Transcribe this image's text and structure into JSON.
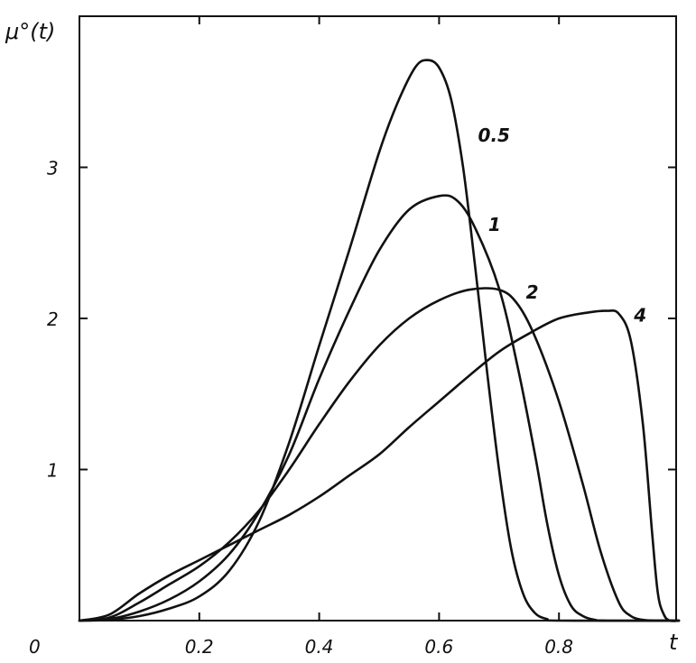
{
  "chart_data": {
    "type": "line",
    "ylabel": "μ°(t)",
    "xlabel": "t",
    "origin_label": "0",
    "xlim": [
      0,
      1.0
    ],
    "ylim": [
      0,
      4.0
    ],
    "x_ticks": [
      {
        "value": 0.2,
        "label": "0.2"
      },
      {
        "value": 0.4,
        "label": "0.4"
      },
      {
        "value": 0.6,
        "label": "0.6"
      },
      {
        "value": 0.8,
        "label": "0.8"
      }
    ],
    "y_ticks": [
      {
        "value": 1,
        "label": "1"
      },
      {
        "value": 2,
        "label": "2"
      },
      {
        "value": 3,
        "label": "3"
      }
    ],
    "grid": false,
    "legend": "none",
    "series": [
      {
        "name": "0.5",
        "label_pos": [
          0.665,
          3.17
        ],
        "points": [
          [
            0,
            0
          ],
          [
            0.05,
            0.005
          ],
          [
            0.1,
            0.03
          ],
          [
            0.15,
            0.08
          ],
          [
            0.2,
            0.16
          ],
          [
            0.25,
            0.33
          ],
          [
            0.3,
            0.66
          ],
          [
            0.35,
            1.18
          ],
          [
            0.4,
            1.82
          ],
          [
            0.45,
            2.45
          ],
          [
            0.5,
            3.1
          ],
          [
            0.53,
            3.42
          ],
          [
            0.56,
            3.66
          ],
          [
            0.58,
            3.71
          ],
          [
            0.6,
            3.66
          ],
          [
            0.62,
            3.45
          ],
          [
            0.64,
            3.0
          ],
          [
            0.66,
            2.35
          ],
          [
            0.68,
            1.65
          ],
          [
            0.7,
            1.0
          ],
          [
            0.72,
            0.48
          ],
          [
            0.74,
            0.18
          ],
          [
            0.76,
            0.05
          ],
          [
            0.78,
            0.01
          ],
          [
            0.8,
            0
          ],
          [
            1.0,
            0
          ]
        ]
      },
      {
        "name": "1",
        "label_pos": [
          0.682,
          2.58
        ],
        "points": [
          [
            0,
            0
          ],
          [
            0.05,
            0.01
          ],
          [
            0.1,
            0.06
          ],
          [
            0.15,
            0.14
          ],
          [
            0.2,
            0.26
          ],
          [
            0.25,
            0.44
          ],
          [
            0.3,
            0.72
          ],
          [
            0.35,
            1.1
          ],
          [
            0.4,
            1.6
          ],
          [
            0.45,
            2.05
          ],
          [
            0.5,
            2.45
          ],
          [
            0.55,
            2.72
          ],
          [
            0.6,
            2.81
          ],
          [
            0.63,
            2.78
          ],
          [
            0.66,
            2.6
          ],
          [
            0.7,
            2.2
          ],
          [
            0.73,
            1.7
          ],
          [
            0.76,
            1.1
          ],
          [
            0.78,
            0.65
          ],
          [
            0.8,
            0.3
          ],
          [
            0.82,
            0.1
          ],
          [
            0.84,
            0.03
          ],
          [
            0.86,
            0.005
          ],
          [
            0.88,
            0
          ],
          [
            1.0,
            0
          ]
        ]
      },
      {
        "name": "2",
        "label_pos": [
          0.745,
          2.13
        ],
        "points": [
          [
            0,
            0
          ],
          [
            0.05,
            0.02
          ],
          [
            0.1,
            0.12
          ],
          [
            0.15,
            0.24
          ],
          [
            0.2,
            0.36
          ],
          [
            0.25,
            0.52
          ],
          [
            0.3,
            0.73
          ],
          [
            0.35,
            1.0
          ],
          [
            0.4,
            1.3
          ],
          [
            0.45,
            1.58
          ],
          [
            0.5,
            1.82
          ],
          [
            0.55,
            2.0
          ],
          [
            0.6,
            2.12
          ],
          [
            0.65,
            2.19
          ],
          [
            0.7,
            2.19
          ],
          [
            0.73,
            2.1
          ],
          [
            0.76,
            1.88
          ],
          [
            0.8,
            1.45
          ],
          [
            0.84,
            0.9
          ],
          [
            0.87,
            0.45
          ],
          [
            0.9,
            0.12
          ],
          [
            0.92,
            0.03
          ],
          [
            0.94,
            0.005
          ],
          [
            0.96,
            0
          ],
          [
            1.0,
            0
          ]
        ]
      },
      {
        "name": "4",
        "label_pos": [
          0.925,
          1.98
        ],
        "points": [
          [
            0,
            0
          ],
          [
            0.05,
            0.04
          ],
          [
            0.1,
            0.18
          ],
          [
            0.15,
            0.3
          ],
          [
            0.2,
            0.4
          ],
          [
            0.25,
            0.5
          ],
          [
            0.3,
            0.6
          ],
          [
            0.35,
            0.7
          ],
          [
            0.4,
            0.82
          ],
          [
            0.45,
            0.96
          ],
          [
            0.5,
            1.1
          ],
          [
            0.55,
            1.28
          ],
          [
            0.6,
            1.45
          ],
          [
            0.65,
            1.62
          ],
          [
            0.7,
            1.78
          ],
          [
            0.75,
            1.9
          ],
          [
            0.8,
            2.0
          ],
          [
            0.85,
            2.04
          ],
          [
            0.88,
            2.05
          ],
          [
            0.9,
            2.03
          ],
          [
            0.92,
            1.85
          ],
          [
            0.94,
            1.3
          ],
          [
            0.955,
            0.6
          ],
          [
            0.965,
            0.18
          ],
          [
            0.975,
            0.04
          ],
          [
            0.985,
            0
          ],
          [
            1.0,
            0
          ]
        ]
      }
    ]
  }
}
